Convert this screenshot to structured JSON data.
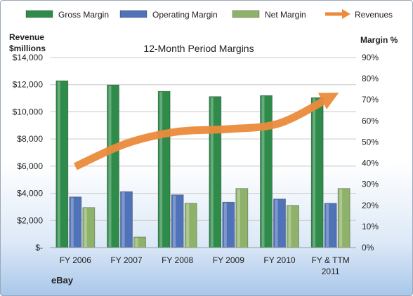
{
  "chart_data": {
    "type": "bar",
    "title": "12-Month Period Margins",
    "company_label": "eBay",
    "left_axis_title": [
      "Revenue",
      "$millions"
    ],
    "right_axis_title": "Margin %",
    "categories": [
      "FY 2006",
      "FY 2007",
      "FY 2008",
      "FY 2009",
      "FY 2010",
      "FY & TTM 2011"
    ],
    "left_axis": {
      "min": 0,
      "max": 14000,
      "step": 2000
    },
    "right_axis": {
      "min": 0,
      "max": 90,
      "step": 10
    },
    "left_tick_labels": [
      "$-",
      "$2,000",
      "$4,000",
      "$6,000",
      "$8,000",
      "$10,000",
      "$12,000",
      "$14,000"
    ],
    "right_tick_labels": [
      "0%",
      "10%",
      "20%",
      "30%",
      "40%",
      "50%",
      "60%",
      "70%",
      "80%",
      "90%"
    ],
    "series": [
      {
        "name": "Gross Margin",
        "axis": "right",
        "color": "#2e8b4a",
        "values": [
          79,
          77,
          74,
          71.5,
          72,
          71
        ]
      },
      {
        "name": "Operating Margin",
        "axis": "right",
        "color": "#4f72b8",
        "values": [
          24,
          26.5,
          25,
          21.5,
          23,
          21
        ]
      },
      {
        "name": "Net Margin",
        "axis": "right",
        "color": "#8fb26a",
        "values": [
          19,
          5,
          21,
          28,
          20,
          28
        ]
      },
      {
        "name": "Revenues",
        "axis": "left",
        "type": "line",
        "color": "#ec8b3c",
        "values": [
          5970,
          7670,
          8540,
          8730,
          9160,
          11100
        ]
      }
    ],
    "legend_position": "top",
    "grid": true
  }
}
